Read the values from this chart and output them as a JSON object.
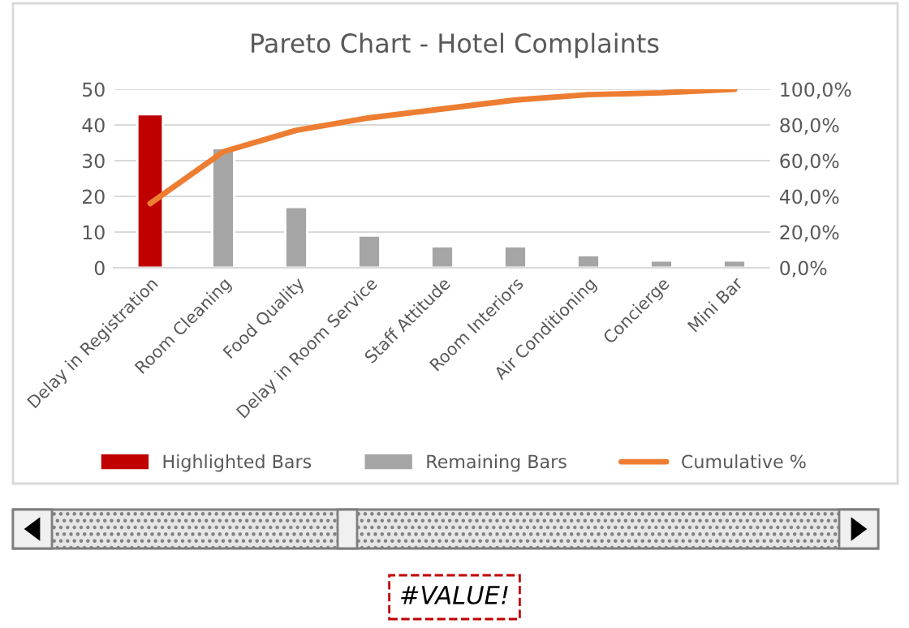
{
  "chart_data": {
    "type": "bar",
    "title": "Pareto Chart - Hotel Complaints",
    "categories": [
      "Delay in Registration",
      "Room Cleaning",
      "Food Quality",
      "Delay in Room Service",
      "Staff Attitude",
      "Room Interiors",
      "Air Conditioning",
      "Concierge",
      "Mini Bar"
    ],
    "series": [
      {
        "name": "Highlighted Bars",
        "color": "#c00000",
        "values": [
          43,
          null,
          null,
          null,
          null,
          null,
          null,
          null,
          null
        ]
      },
      {
        "name": "Remaining Bars",
        "color": "#a5a5a5",
        "values": [
          null,
          33.5,
          17,
          9,
          6,
          6,
          3.5,
          2,
          2
        ]
      },
      {
        "name": "Cumulative %",
        "type": "line",
        "axis": "y2",
        "color": "#ed7d31",
        "values": [
          36,
          65,
          77,
          84,
          89,
          94,
          97,
          98,
          100
        ]
      }
    ],
    "ylim": [
      0,
      50
    ],
    "yticks": [
      0,
      10,
      20,
      30,
      40,
      50
    ],
    "y2lim": [
      0,
      100
    ],
    "y2ticks": [
      {
        "value": 0,
        "label": "0,0%"
      },
      {
        "value": 20,
        "label": "20,0%"
      },
      {
        "value": 40,
        "label": "40,0%"
      },
      {
        "value": 60,
        "label": "60,0%"
      },
      {
        "value": 80,
        "label": "80,0%"
      },
      {
        "value": 100,
        "label": "100,0%"
      }
    ],
    "grid": "y",
    "legend": "bottom",
    "marker": "none",
    "line_style": "solid",
    "annotations": [
      "#VALUE!"
    ]
  }
}
